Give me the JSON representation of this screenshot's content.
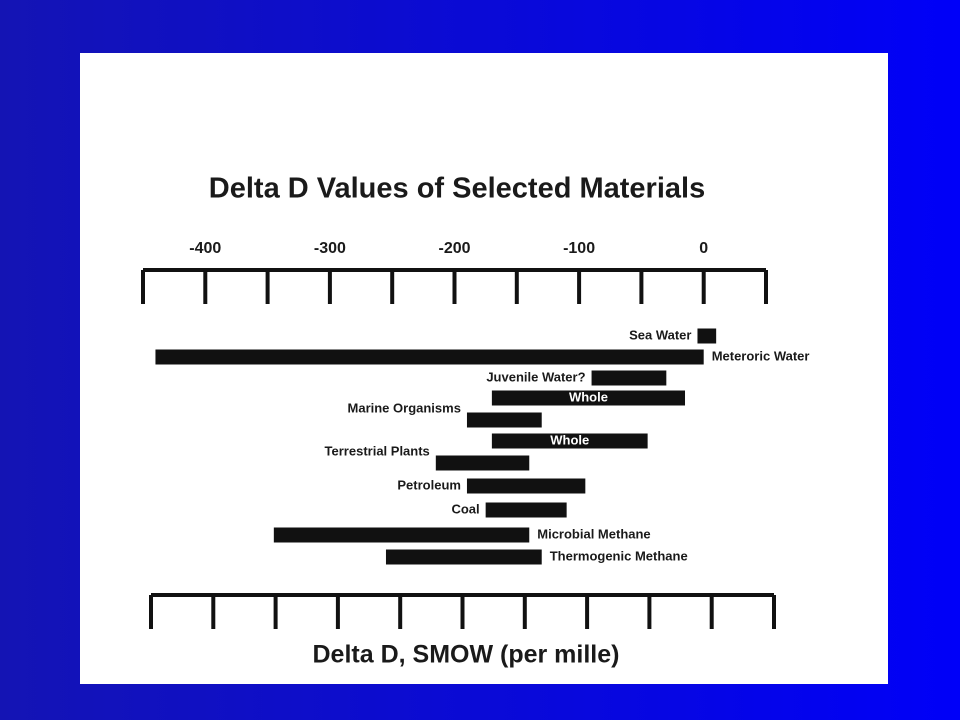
{
  "chart_data": {
    "type": "range-bar",
    "title": "Delta D Values of Selected Materials",
    "x_label": "Delta D, SMOW (per mille)",
    "xlim": [
      -450,
      50
    ],
    "xticks": [
      -400,
      -300,
      -200,
      -100,
      0
    ],
    "minor_ticks": [
      -450,
      -350,
      -250,
      -150,
      -50,
      50
    ],
    "color": "#111111",
    "categories": [
      {
        "name": "Sea Water",
        "ranges": [
          {
            "low": -5,
            "high": 10
          }
        ]
      },
      {
        "name": "Meteroric Water",
        "ranges": [
          {
            "low": -440,
            "high": 0
          }
        ]
      },
      {
        "name": "Juvenile Water?",
        "ranges": [
          {
            "low": -90,
            "high": -30
          }
        ]
      },
      {
        "name": "Marine Organisms",
        "ranges": [
          {
            "low": -170,
            "high": -15,
            "label": "Whole"
          },
          {
            "low": -190,
            "high": -130
          }
        ]
      },
      {
        "name": "Terrestrial Plants",
        "ranges": [
          {
            "low": -170,
            "high": -45,
            "label": "Whole"
          },
          {
            "low": -215,
            "high": -140
          }
        ]
      },
      {
        "name": "Petroleum",
        "ranges": [
          {
            "low": -190,
            "high": -95
          }
        ]
      },
      {
        "name": "Coal",
        "ranges": [
          {
            "low": -175,
            "high": -110
          }
        ]
      },
      {
        "name": "Microbial Methane",
        "ranges": [
          {
            "low": -345,
            "high": -140
          }
        ]
      },
      {
        "name": "Thermogenic Methane",
        "ranges": [
          {
            "low": -255,
            "high": -130
          }
        ]
      }
    ]
  }
}
